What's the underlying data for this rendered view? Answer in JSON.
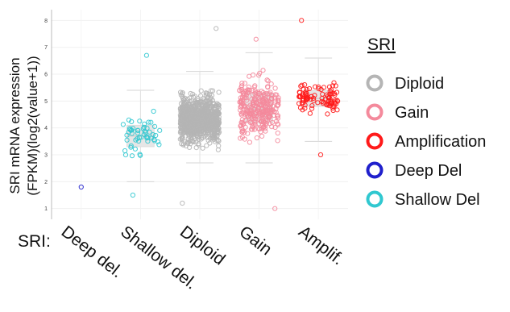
{
  "chart_data": {
    "type": "scatter",
    "ylabel_line1": "SRI mRNA expression",
    "ylabel_line2": "(FPKM)(log2(value+1))",
    "xprefix": "SRI:",
    "categories": [
      "Deep del.",
      "Shallow del.",
      "Diploid",
      "Gain",
      "Amplif."
    ],
    "yticks": [
      "1",
      "2",
      "3",
      "4",
      "5",
      "6",
      "7",
      "8"
    ],
    "ylim": [
      0.6,
      8.4
    ],
    "grid": true,
    "legend": {
      "title": "SRI",
      "position": "right",
      "items": [
        {
          "name": "Diploid",
          "color": "#b5b5b5"
        },
        {
          "name": "Gain",
          "color": "#f48a9c"
        },
        {
          "name": "Amplification",
          "color": "#ff1a1a"
        },
        {
          "name": "Deep Del",
          "color": "#2020cc"
        },
        {
          "name": "Shallow Del",
          "color": "#30c8d0"
        }
      ]
    },
    "groups": [
      {
        "category": "Deep del.",
        "color": "#2020cc",
        "n": 1,
        "median": 1.8,
        "q1": 1.8,
        "q3": 1.8,
        "lo": 1.8,
        "hi": 1.8,
        "min": 1.8,
        "max": 1.8
      },
      {
        "category": "Shallow del.",
        "color": "#30c8d0",
        "n": 55,
        "median": 3.7,
        "q1": 3.3,
        "q3": 4.1,
        "lo": 2.0,
        "hi": 5.4,
        "min": 1.5,
        "max": 6.7
      },
      {
        "category": "Diploid",
        "color": "#b5b5b5",
        "n": 900,
        "median": 4.3,
        "q1": 3.9,
        "q3": 4.8,
        "lo": 2.7,
        "hi": 6.1,
        "min": 1.2,
        "max": 7.7
      },
      {
        "category": "Gain",
        "color": "#f48a9c",
        "n": 300,
        "median": 4.7,
        "q1": 4.2,
        "q3": 5.3,
        "lo": 2.7,
        "hi": 6.8,
        "min": 1.0,
        "max": 7.3
      },
      {
        "category": "Amplif.",
        "color": "#ff1a1a",
        "n": 100,
        "median": 5.1,
        "q1": 4.8,
        "q3": 5.4,
        "lo": 3.5,
        "hi": 6.6,
        "min": 3.0,
        "max": 8.0
      }
    ]
  }
}
